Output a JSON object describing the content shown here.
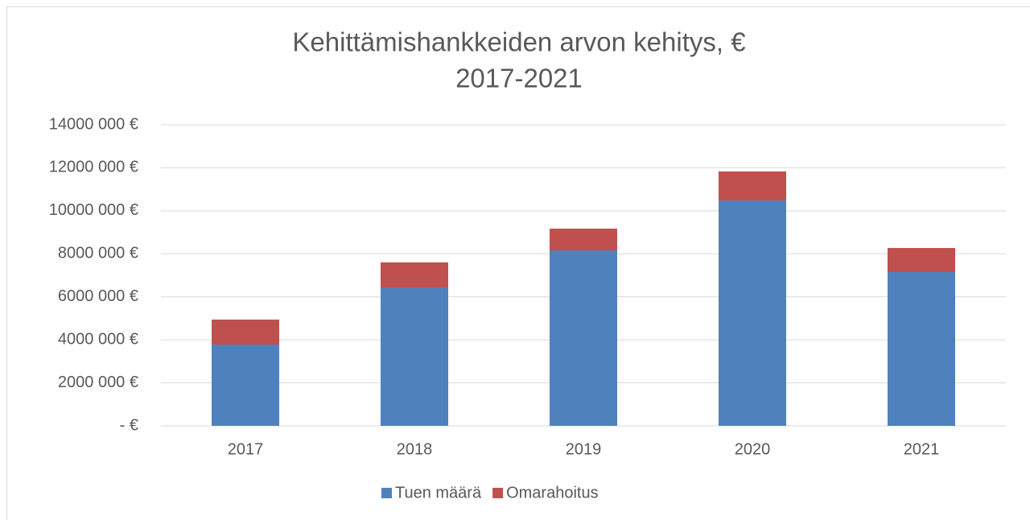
{
  "chart_data": {
    "type": "stacked_bar",
    "title": [
      "Kehittämishankkeiden arvon kehitys, €",
      "2017-2021"
    ],
    "categories": [
      "2017",
      "2018",
      "2019",
      "2020",
      "2021"
    ],
    "series": [
      {
        "name": "Tuen määrä",
        "color": "#4f81bd",
        "values": [
          3780000,
          6440000,
          8160000,
          10480000,
          7150000
        ]
      },
      {
        "name": "Omarahoitus",
        "color": "#c0504d",
        "values": [
          1160000,
          1160000,
          1010000,
          1350000,
          1120000
        ]
      }
    ],
    "ylim": [
      0,
      14000000
    ],
    "yticks": [
      {
        "value": 0,
        "label": "-  €"
      },
      {
        "value": 2000000,
        "label": "2000 000 €"
      },
      {
        "value": 4000000,
        "label": "4000 000 €"
      },
      {
        "value": 6000000,
        "label": "6000 000 €"
      },
      {
        "value": 8000000,
        "label": "8000 000 €"
      },
      {
        "value": 10000000,
        "label": "10000 000 €"
      },
      {
        "value": 12000000,
        "label": "12000 000 €"
      },
      {
        "value": 14000000,
        "label": "14000 000 €"
      }
    ],
    "grid": true,
    "legend": "bottom"
  }
}
